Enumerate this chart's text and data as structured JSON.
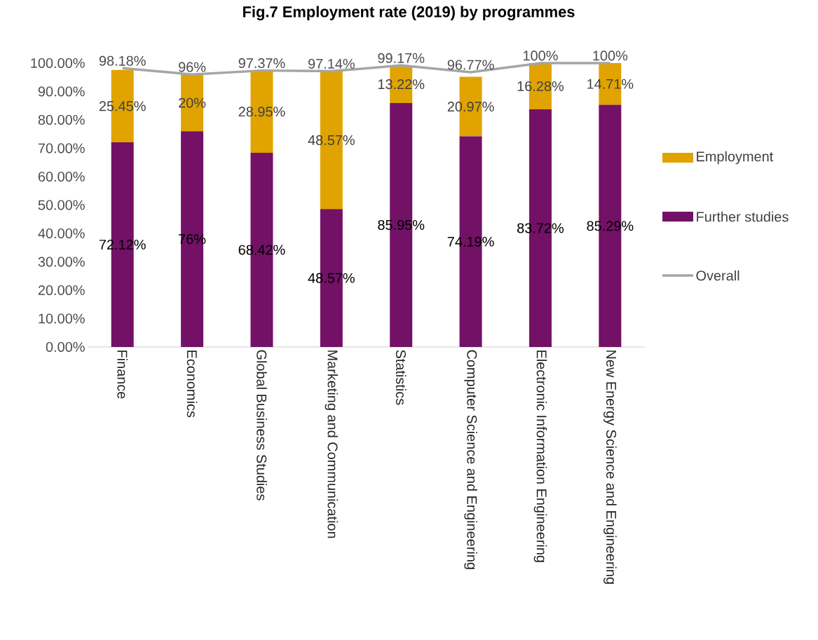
{
  "chart_data": {
    "type": "bar",
    "title": "Fig.7 Employment rate (2019) by programmes",
    "categories": [
      "Finance",
      "Economics",
      "Global Business Studies",
      "Marketing and Communication",
      "Statistics",
      "Computer Science and Engineering",
      "Electronic Information Engineering",
      "New Energy Science and Engineering"
    ],
    "stacked": true,
    "series": [
      {
        "name": "Further studies",
        "color": "#731166",
        "values": [
          72.12,
          76,
          68.42,
          48.57,
          85.95,
          74.19,
          83.72,
          85.29
        ],
        "value_labels": [
          "72.12%",
          "76%",
          "68.42%",
          "48.57%",
          "85.95%",
          "74.19%",
          "83.72%",
          "85.29%"
        ]
      },
      {
        "name": "Employment",
        "color": "#E0A300",
        "values": [
          25.45,
          20,
          28.95,
          48.57,
          13.22,
          20.97,
          16.28,
          14.71
        ],
        "value_labels": [
          "25.45%",
          "20%",
          "28.95%",
          "48.57%",
          "13.22%",
          "20.97%",
          "16.28%",
          "14.71%"
        ]
      },
      {
        "name": "Overall",
        "type": "line",
        "color": "#A5A5A5",
        "values": [
          98.18,
          96,
          97.37,
          97.14,
          99.17,
          96.77,
          100,
          100
        ],
        "value_labels": [
          "98.18%",
          "96%",
          "97.37%",
          "97.14%",
          "99.17%",
          "96.77%",
          "100%",
          "100%"
        ]
      }
    ],
    "ylim": [
      0,
      100
    ],
    "yticks": [
      {
        "value": 0,
        "label": "0.00%"
      },
      {
        "value": 10,
        "label": "10.00%"
      },
      {
        "value": 20,
        "label": "20.00%"
      },
      {
        "value": 30,
        "label": "30.00%"
      },
      {
        "value": 40,
        "label": "40.00%"
      },
      {
        "value": 50,
        "label": "50.00%"
      },
      {
        "value": 60,
        "label": "60.00%"
      },
      {
        "value": 70,
        "label": "70.00%"
      },
      {
        "value": 80,
        "label": "80.00%"
      },
      {
        "value": 90,
        "label": "90.00%"
      },
      {
        "value": 100,
        "label": "100.00%"
      }
    ],
    "legend": "right"
  }
}
